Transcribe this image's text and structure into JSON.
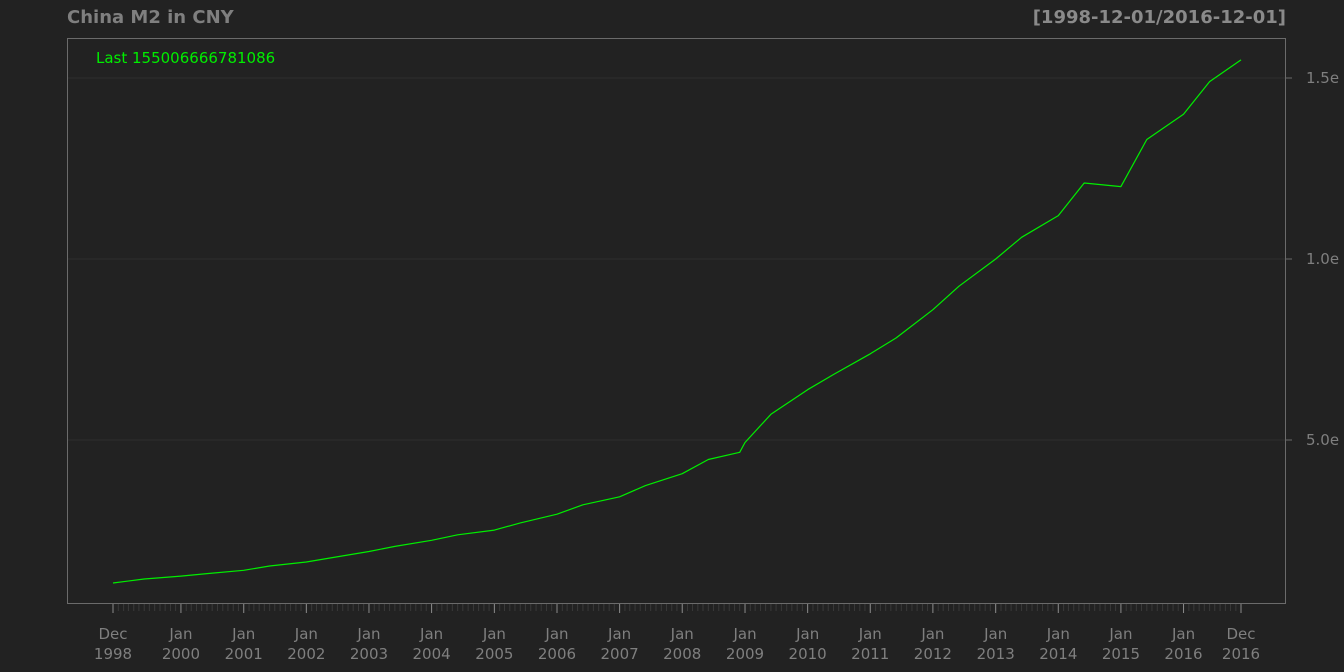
{
  "title": "China M2 in CNY",
  "date_range": "[1998-12-01/2016-12-01]",
  "last_label": "Last 155006666781086",
  "colors": {
    "background": "#222222",
    "series": "#00ee00",
    "text": "#7f7f7f",
    "grid": "#2f2f2f",
    "frame": "#6b6b6b"
  },
  "chart_data": {
    "type": "line",
    "title": "China M2 in CNY",
    "xlabel": "",
    "ylabel": "",
    "grid": true,
    "legend_placement": "top-left",
    "x_range": [
      "1998-12-01",
      "2016-12-01"
    ],
    "ylim": [
      0,
      150000000000000.0
    ],
    "x_ticks": [
      {
        "date": "1998-12-01",
        "line1": "Dec",
        "line2": "1998"
      },
      {
        "date": "2000-01-01",
        "line1": "Jan",
        "line2": "2000"
      },
      {
        "date": "2001-01-01",
        "line1": "Jan",
        "line2": "2001"
      },
      {
        "date": "2002-01-01",
        "line1": "Jan",
        "line2": "2002"
      },
      {
        "date": "2003-01-01",
        "line1": "Jan",
        "line2": "2003"
      },
      {
        "date": "2004-01-01",
        "line1": "Jan",
        "line2": "2004"
      },
      {
        "date": "2005-01-01",
        "line1": "Jan",
        "line2": "2005"
      },
      {
        "date": "2006-01-01",
        "line1": "Jan",
        "line2": "2006"
      },
      {
        "date": "2007-01-01",
        "line1": "Jan",
        "line2": "2007"
      },
      {
        "date": "2008-01-01",
        "line1": "Jan",
        "line2": "2008"
      },
      {
        "date": "2009-01-01",
        "line1": "Jan",
        "line2": "2009"
      },
      {
        "date": "2010-01-01",
        "line1": "Jan",
        "line2": "2010"
      },
      {
        "date": "2011-01-01",
        "line1": "Jan",
        "line2": "2011"
      },
      {
        "date": "2012-01-01",
        "line1": "Jan",
        "line2": "2012"
      },
      {
        "date": "2013-01-01",
        "line1": "Jan",
        "line2": "2013"
      },
      {
        "date": "2014-01-01",
        "line1": "Jan",
        "line2": "2014"
      },
      {
        "date": "2015-01-01",
        "line1": "Jan",
        "line2": "2015"
      },
      {
        "date": "2016-01-01",
        "line1": "Jan",
        "line2": "2016"
      },
      {
        "date": "2016-12-01",
        "line1": "Dec",
        "line2": "2016"
      }
    ],
    "y_ticks": [
      {
        "value": 50000000000000,
        "label": "5.0e"
      },
      {
        "value": 100000000000000,
        "label": "1.0e"
      },
      {
        "value": 150000000000000,
        "label": "1.5e"
      }
    ],
    "series": [
      {
        "name": "",
        "x": [
          "1998-12-01",
          "1999-06-01",
          "2000-01-01",
          "2000-06-01",
          "2001-01-01",
          "2001-06-01",
          "2002-01-01",
          "2002-06-01",
          "2003-01-01",
          "2003-06-01",
          "2004-01-01",
          "2004-06-01",
          "2005-01-01",
          "2005-06-01",
          "2006-01-01",
          "2006-06-01",
          "2007-01-01",
          "2007-06-01",
          "2008-01-01",
          "2008-06-01",
          "2008-12-01",
          "2009-01-01",
          "2009-06-01",
          "2010-01-01",
          "2010-06-01",
          "2011-01-01",
          "2011-06-01",
          "2012-01-01",
          "2012-06-01",
          "2013-01-01",
          "2013-06-01",
          "2014-01-01",
          "2014-06-01",
          "2015-01-01",
          "2015-06-01",
          "2016-01-01",
          "2016-06-01",
          "2016-12-01"
        ],
        "values": [
          10500000000000.0,
          11600000000000.0,
          12400000000000.0,
          13100000000000.0,
          14000000000000.0,
          15200000000000.0,
          16300000000000.0,
          17500000000000.0,
          19200000000000.0,
          20600000000000.0,
          22300000000000.0,
          23800000000000.0,
          25100000000000.0,
          27100000000000.0,
          29500000000000.0,
          32100000000000.0,
          34300000000000.0,
          37400000000000.0,
          40700000000000.0,
          44600000000000.0,
          46600000000000.0,
          49300000000000.0,
          57100000000000.0,
          63900000000000.0,
          68100000000000.0,
          73800000000000.0,
          78200000000000.0,
          86000000000000.0,
          92500000000000.0,
          100000000000000.0,
          106000000000000.0,
          112000000000000.0,
          121000000000000.0,
          120000000000000.0,
          133000000000000.0,
          140000000000000.0,
          149000000000000.0,
          155000000000000.0
        ]
      }
    ]
  }
}
